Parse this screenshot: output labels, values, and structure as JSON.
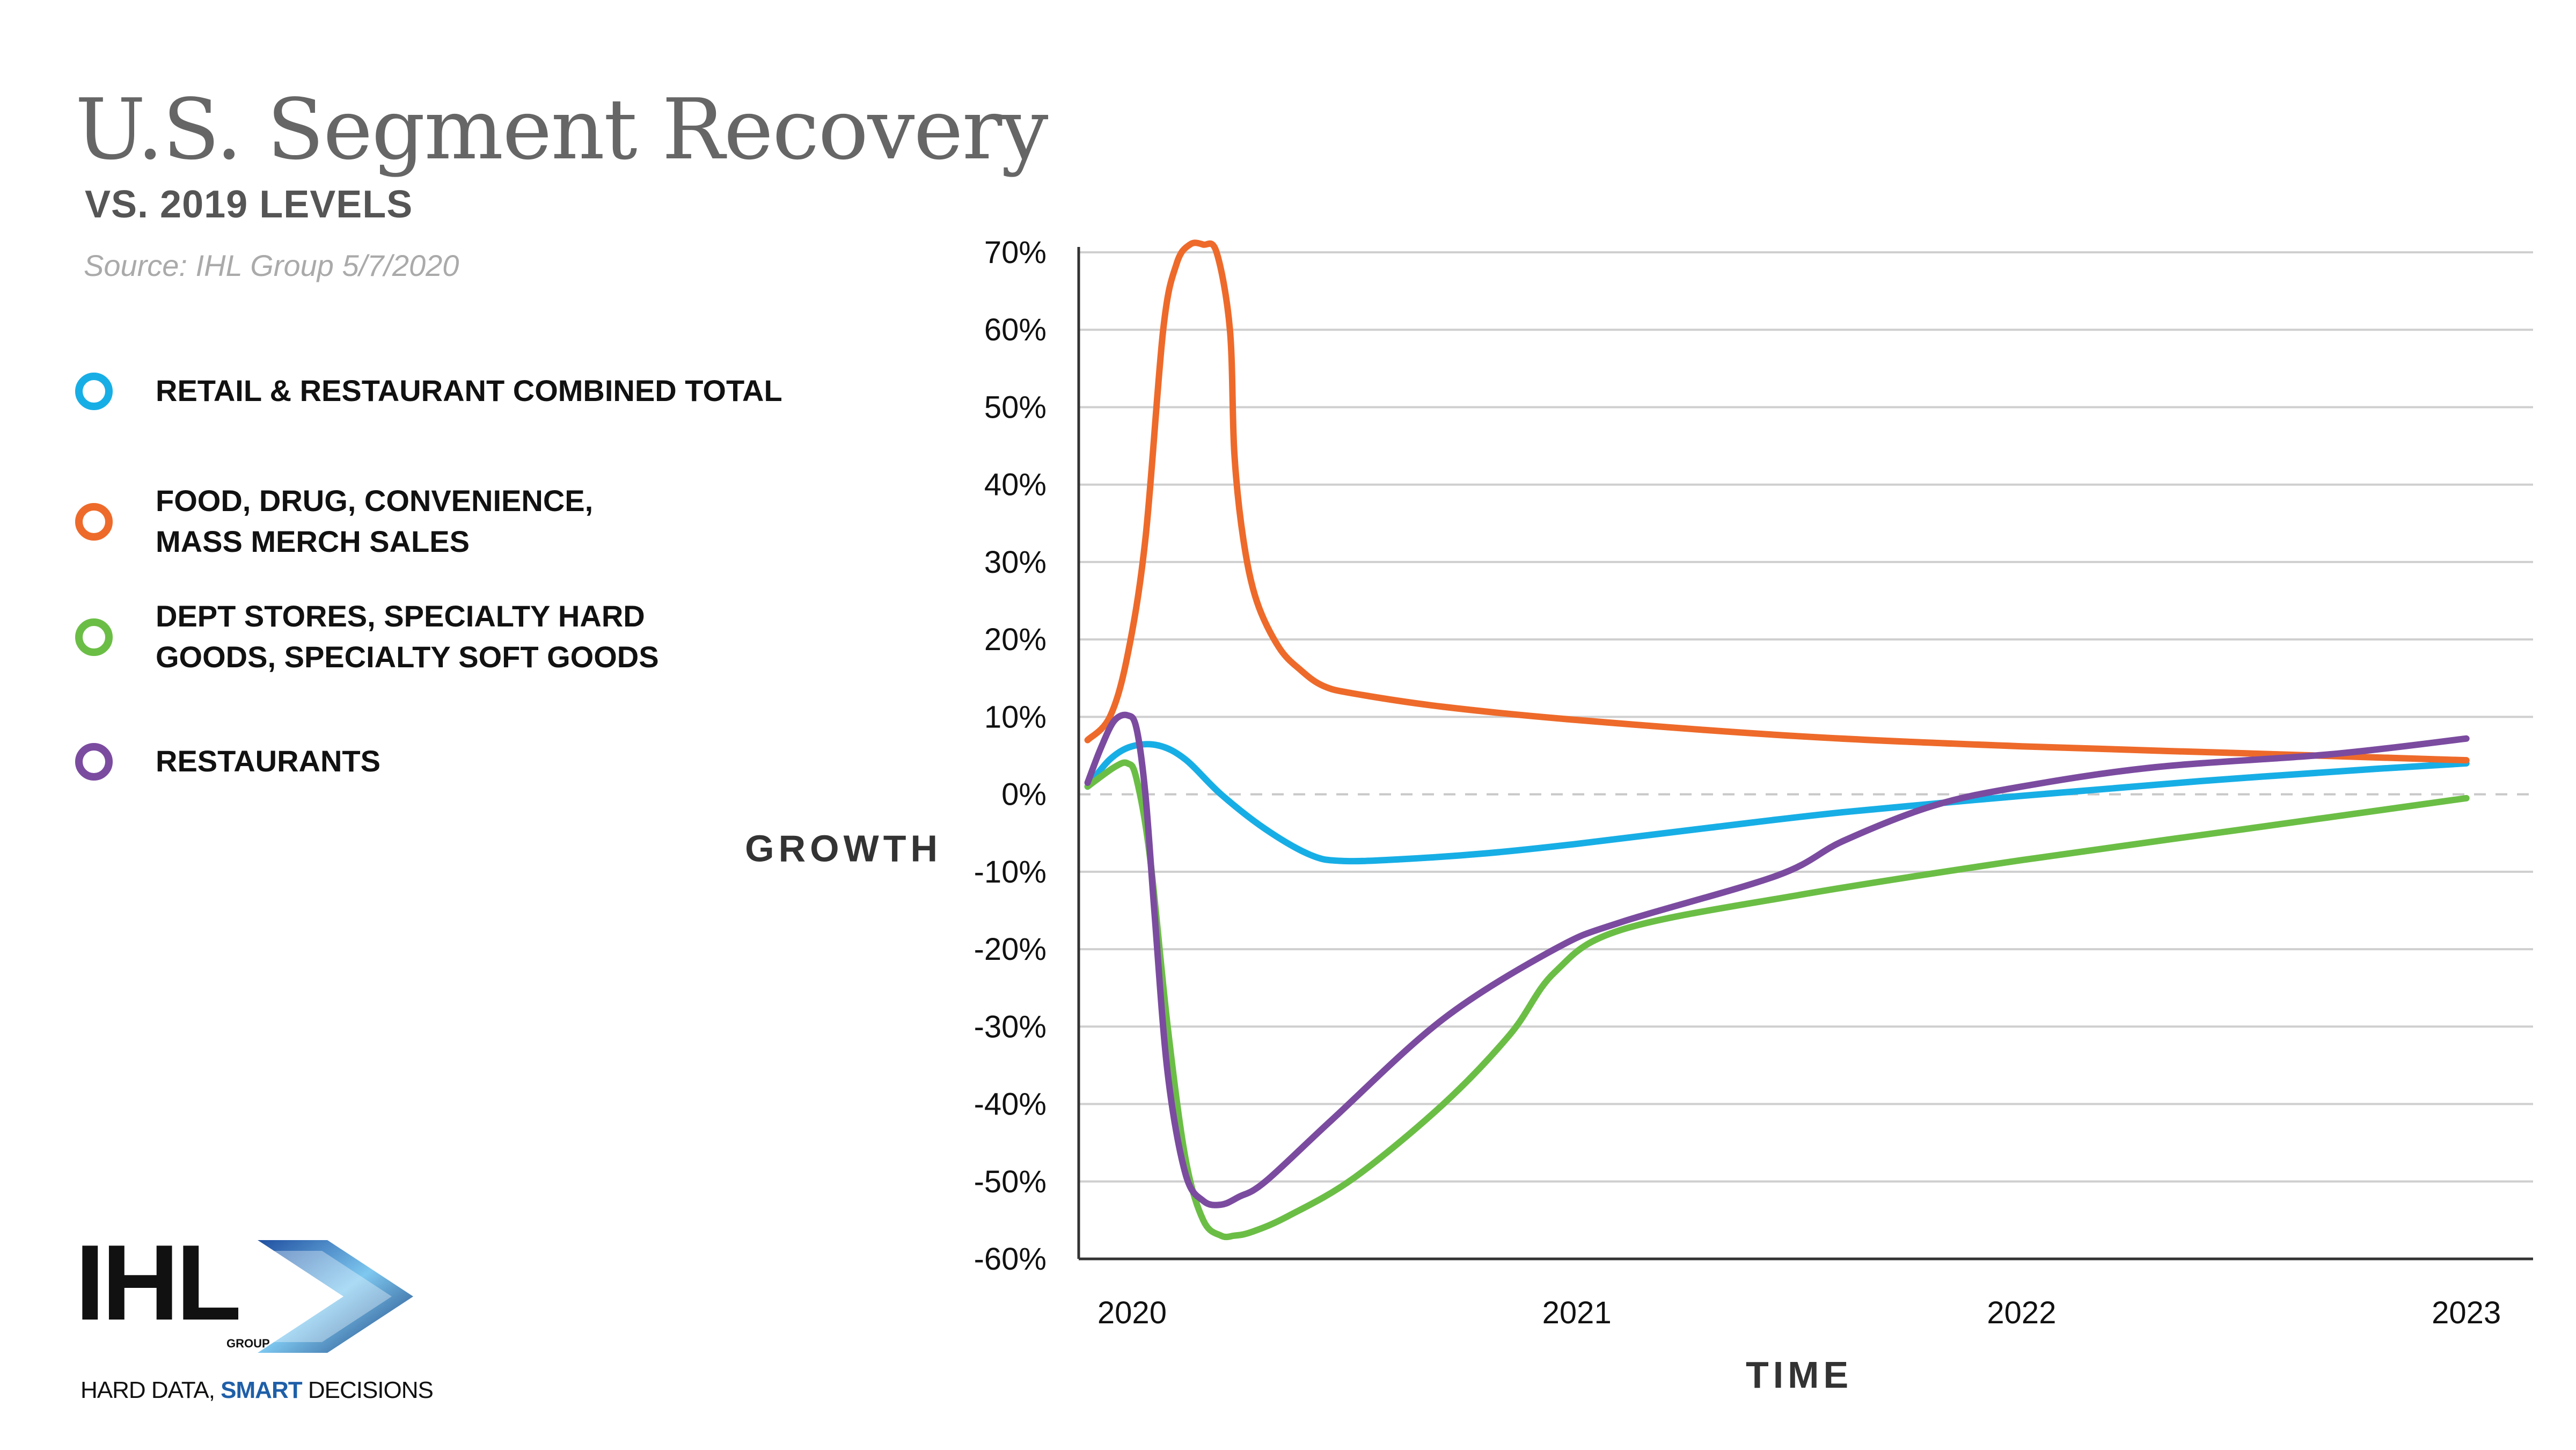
{
  "header": {
    "title": "U.S. Segment Recovery",
    "subtitle": "VS. 2019 LEVELS",
    "source": "Source: IHL Group 5/7/2020"
  },
  "legend": [
    {
      "lines": [
        "RETAIL & RESTAURANT COMBINED TOTAL"
      ],
      "color": "#17AEE6"
    },
    {
      "lines": [
        "FOOD, DRUG, CONVENIENCE,",
        "MASS MERCH SALES"
      ],
      "color": "#EE6A2A"
    },
    {
      "lines": [
        "DEPT STORES, SPECIALTY HARD",
        "GOODS, SPECIALTY SOFT GOODS"
      ],
      "color": "#6BBE45"
    },
    {
      "lines": [
        "RESTAURANTS"
      ],
      "color": "#7B4BA0"
    }
  ],
  "logo": {
    "wordmark": "IHL",
    "group": "GROUP",
    "tagline_prefix": "HARD DATA, ",
    "tagline_emphasis": "SMART",
    "tagline_suffix": " DECISIONS"
  },
  "chart_data": {
    "type": "line",
    "ylabel": "GROWTH",
    "xlabel": "TIME",
    "ylim": [
      -60,
      70
    ],
    "xlim": [
      2019.88,
      2023.15
    ],
    "yticks": [
      70,
      60,
      50,
      40,
      30,
      20,
      10,
      0,
      -10,
      -20,
      -30,
      -40,
      -50,
      -60
    ],
    "ytick_labels": [
      "70%",
      "60%",
      "50%",
      "40%",
      "30%",
      "20%",
      "10%",
      "0%",
      "-10%",
      "-20%",
      "-30%",
      "-40%",
      "-50%",
      "-60%"
    ],
    "xticks": [
      2020,
      2021,
      2022,
      2023
    ],
    "xtick_labels": [
      "2020",
      "2021",
      "2022",
      "2023"
    ],
    "grid": true,
    "zero_line_dashed": true,
    "series": [
      {
        "name": "RETAIL & RESTAURANT COMBINED TOTAL",
        "color": "#17AEE6",
        "x": [
          2019.9,
          2019.95,
          2020.0,
          2020.06,
          2020.12,
          2020.2,
          2020.3,
          2020.4,
          2020.47,
          2020.6,
          2020.8,
          2021.0,
          2021.3,
          2021.6,
          2022.0,
          2022.4,
          2022.8,
          2023.0
        ],
        "y": [
          1,
          4.5,
          6.2,
          6.3,
          4.5,
          0,
          -4.5,
          -7.8,
          -8.6,
          -8.4,
          -7.6,
          -6.4,
          -4.3,
          -2.3,
          -0.2,
          1.7,
          3.3,
          4.0
        ]
      },
      {
        "name": "FOOD, DRUG, CONVENIENCE, MASS MERCH SALES",
        "color": "#EE6A2A",
        "x": [
          2019.9,
          2019.95,
          2019.99,
          2020.03,
          2020.07,
          2020.1,
          2020.13,
          2020.16,
          2020.19,
          2020.22,
          2020.23,
          2020.25,
          2020.28,
          2020.33,
          2020.38,
          2020.43,
          2020.5,
          2020.7,
          2021.0,
          2021.5,
          2022.0,
          2022.5,
          2023.0
        ],
        "y": [
          7,
          10,
          18,
          33,
          60,
          68.5,
          71,
          71,
          70,
          60,
          44,
          33,
          25,
          19,
          16,
          14,
          13,
          11.3,
          9.6,
          7.5,
          6.2,
          5.3,
          4.4
        ]
      },
      {
        "name": "DEPT STORES, SPECIALTY HARD GOODS, SPECIALTY SOFT GOODS",
        "color": "#6BBE45",
        "x": [
          2019.9,
          2019.96,
          2019.99,
          2020.01,
          2020.04,
          2020.08,
          2020.12,
          2020.16,
          2020.2,
          2020.23,
          2020.27,
          2020.35,
          2020.5,
          2020.7,
          2020.85,
          2020.95,
          2021.1,
          2021.5,
          2022.0,
          2022.5,
          2023.0
        ],
        "y": [
          1,
          3.5,
          4,
          2,
          -8,
          -30,
          -47,
          -55,
          -57,
          -57,
          -56.5,
          -54.5,
          -49.5,
          -40,
          -31,
          -23,
          -17.5,
          -13,
          -8.5,
          -4.5,
          -0.5
        ]
      },
      {
        "name": "RESTAURANTS",
        "color": "#7B4BA0",
        "x": [
          2019.9,
          2019.93,
          2019.96,
          2019.99,
          2020.01,
          2020.03,
          2020.05,
          2020.08,
          2020.12,
          2020.16,
          2020.2,
          2020.24,
          2020.3,
          2020.45,
          2020.7,
          2020.95,
          2021.1,
          2021.45,
          2021.6,
          2021.8,
          2022.0,
          2022.3,
          2022.7,
          2023.0
        ],
        "y": [
          1.5,
          6,
          9.5,
          10.2,
          8.5,
          0,
          -15,
          -36,
          -49,
          -52.5,
          -53,
          -52,
          -50,
          -42,
          -29,
          -20,
          -16.5,
          -10.5,
          -6,
          -1.5,
          1,
          3.5,
          5.2,
          7.2
        ]
      }
    ]
  }
}
